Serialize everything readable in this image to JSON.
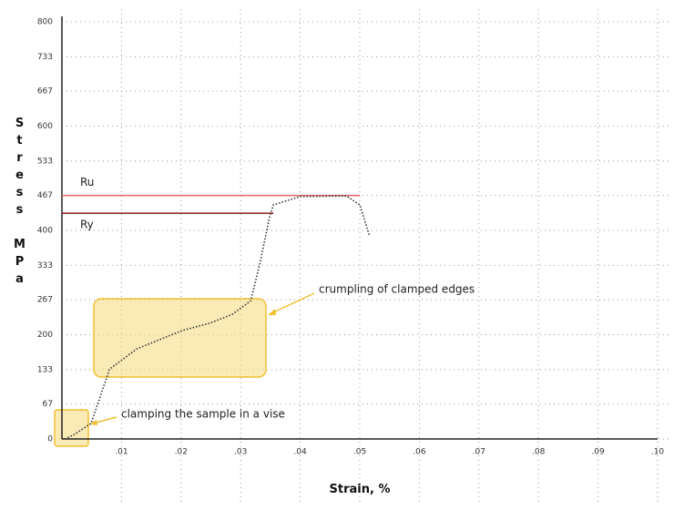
{
  "chart_data": {
    "type": "line",
    "x_label": "Strain, %",
    "y_label": "Stress MPa",
    "x": [
      0.0005,
      0.002,
      0.0049,
      0.008,
      0.0126,
      0.0202,
      0.0248,
      0.0286,
      0.0317,
      0.0332,
      0.0348,
      0.0355,
      0.04,
      0.0478,
      0.05,
      0.0516
    ],
    "series": [
      {
        "color": "#333333",
        "values": [
          0,
          8,
          30,
          134,
          173,
          208,
          222,
          239,
          265,
          335,
          423,
          449,
          465,
          466,
          449,
          391
        ]
      }
    ],
    "xlim": [
      0,
      0.1
    ],
    "ylim": [
      0,
      800
    ],
    "xticks": [
      {
        "value": 0.01,
        "label": ".01"
      },
      {
        "value": 0.02,
        "label": ".02"
      },
      {
        "value": 0.03,
        "label": ".03"
      },
      {
        "value": 0.04,
        "label": ".04"
      },
      {
        "value": 0.05,
        "label": ".05"
      },
      {
        "value": 0.06,
        "label": ".06"
      },
      {
        "value": 0.07,
        "label": ".07"
      },
      {
        "value": 0.08,
        "label": ".08"
      },
      {
        "value": 0.09,
        "label": ".09"
      },
      {
        "value": 0.1,
        "label": ".10"
      }
    ],
    "yticks": [
      0,
      67,
      133,
      200,
      267,
      333,
      400,
      467,
      533,
      600,
      667,
      733,
      800
    ],
    "grid": true,
    "reference_lines": [
      {
        "label": "Ru",
        "value": 467,
        "x_end": 0.05,
        "color": "#e06666"
      },
      {
        "label": "Ry",
        "value": 433,
        "x_end": 0.0355,
        "color": "#8b1a1a"
      }
    ],
    "annotations": [
      "crumpling of clamped edges",
      "clamping the sample in a vise"
    ]
  }
}
